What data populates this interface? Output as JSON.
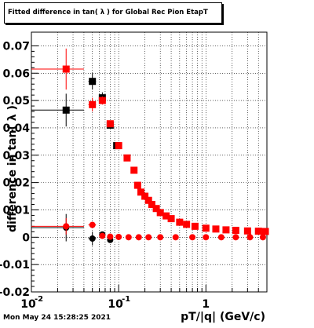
{
  "chart_data": {
    "type": "scatter",
    "title": "Fitted difference in tan( λ ) for Global Rec Pion EtapT",
    "xlabel": "pT/|q| (GeV/c)",
    "ylabel": "difference in tan( λ )",
    "x_scale": "log",
    "xlim": [
      0.01,
      5
    ],
    "ylim": [
      -0.02,
      0.075
    ],
    "grid": true,
    "x_ticks": [
      {
        "value": 0.01,
        "label": "10"
      },
      {
        "value": 0.1,
        "label": "10"
      },
      {
        "value": 1,
        "label": "1"
      }
    ],
    "x_tick_exponents": [
      "-2",
      "-1",
      ""
    ],
    "y_ticks": [
      -0.02,
      -0.01,
      0,
      0.01,
      0.02,
      0.03,
      0.04,
      0.05,
      0.06,
      0.07
    ],
    "y_tick_labels": [
      "-0.02",
      "-0.01",
      "0",
      "0.01",
      "0.02",
      "0.03",
      "0.04",
      "0.05",
      "0.06",
      "0.07"
    ],
    "series": [
      {
        "color": "#000000",
        "marker": "square",
        "points": [
          {
            "x": 0.025,
            "y": 0.0465,
            "xerr": [
              0.01,
              0.04
            ],
            "yerr": 0.006
          },
          {
            "x": 0.05,
            "y": 0.057,
            "xerr": [
              0.045,
              0.055
            ],
            "yerr": 0.003
          },
          {
            "x": 0.065,
            "y": 0.051,
            "xerr": [
              0.06,
              0.07
            ],
            "yerr": 0.002
          },
          {
            "x": 0.08,
            "y": 0.041
          },
          {
            "x": 0.095,
            "y": 0.0335
          }
        ]
      },
      {
        "color": "#000000",
        "marker": "circle",
        "points": [
          {
            "x": 0.025,
            "y": 0.0035,
            "xerr": [
              0.01,
              0.04
            ],
            "yerr": 0.005
          },
          {
            "x": 0.05,
            "y": -0.0005,
            "xerr": [
              0.045,
              0.055
            ],
            "yerr": 0.0025
          },
          {
            "x": 0.065,
            "y": 0.001
          },
          {
            "x": 0.08,
            "y": -0.001
          }
        ]
      },
      {
        "color": "#ff0000",
        "marker": "square",
        "points": [
          {
            "x": 0.025,
            "y": 0.0615,
            "xerr": [
              0.01,
              0.04
            ],
            "yerr": 0.0075
          },
          {
            "x": 0.05,
            "y": 0.0485,
            "xerr": [
              0.045,
              0.055
            ],
            "yerr": 0.0025
          },
          {
            "x": 0.065,
            "y": 0.05,
            "yerr": 0.0015
          },
          {
            "x": 0.08,
            "y": 0.0415
          },
          {
            "x": 0.1,
            "y": 0.0335
          },
          {
            "x": 0.125,
            "y": 0.029
          },
          {
            "x": 0.15,
            "y": 0.0245
          },
          {
            "x": 0.165,
            "y": 0.019
          },
          {
            "x": 0.18,
            "y": 0.0165
          },
          {
            "x": 0.2,
            "y": 0.015
          },
          {
            "x": 0.22,
            "y": 0.0135
          },
          {
            "x": 0.24,
            "y": 0.012
          },
          {
            "x": 0.27,
            "y": 0.0105
          },
          {
            "x": 0.3,
            "y": 0.009
          },
          {
            "x": 0.35,
            "y": 0.0078
          },
          {
            "x": 0.4,
            "y": 0.0068
          },
          {
            "x": 0.5,
            "y": 0.0055
          },
          {
            "x": 0.6,
            "y": 0.0047
          },
          {
            "x": 0.75,
            "y": 0.004
          },
          {
            "x": 1.0,
            "y": 0.0033
          },
          {
            "x": 1.3,
            "y": 0.003
          },
          {
            "x": 1.7,
            "y": 0.0027
          },
          {
            "x": 2.2,
            "y": 0.0025
          },
          {
            "x": 3.0,
            "y": 0.0023
          },
          {
            "x": 4.0,
            "y": 0.0022
          },
          {
            "x": 4.8,
            "y": 0.0021
          }
        ]
      },
      {
        "color": "#ff0000",
        "marker": "circle",
        "points": [
          {
            "x": 0.025,
            "y": 0.004,
            "xerr": [
              0.01,
              0.04
            ],
            "yerr": 0.003
          },
          {
            "x": 0.05,
            "y": 0.0045,
            "xerr": [
              0.045,
              0.055
            ],
            "yerr": 0.001
          },
          {
            "x": 0.065,
            "y": 0.0005
          },
          {
            "x": 0.08,
            "y": 0.0002
          },
          {
            "x": 0.1,
            "y": 0.0001
          },
          {
            "x": 0.13,
            "y": 0.0
          },
          {
            "x": 0.17,
            "y": 0.0
          },
          {
            "x": 0.22,
            "y": 0.0
          },
          {
            "x": 0.3,
            "y": 0.0
          },
          {
            "x": 0.45,
            "y": 0.0
          },
          {
            "x": 0.7,
            "y": 0.0
          },
          {
            "x": 1.0,
            "y": 0.0
          },
          {
            "x": 1.5,
            "y": 0.0
          },
          {
            "x": 2.2,
            "y": 0.0
          },
          {
            "x": 3.2,
            "y": 0.0
          },
          {
            "x": 4.5,
            "y": 0.0
          }
        ]
      }
    ]
  },
  "footer": {
    "timestamp": "Mon May 24 15:28:25 2021"
  }
}
